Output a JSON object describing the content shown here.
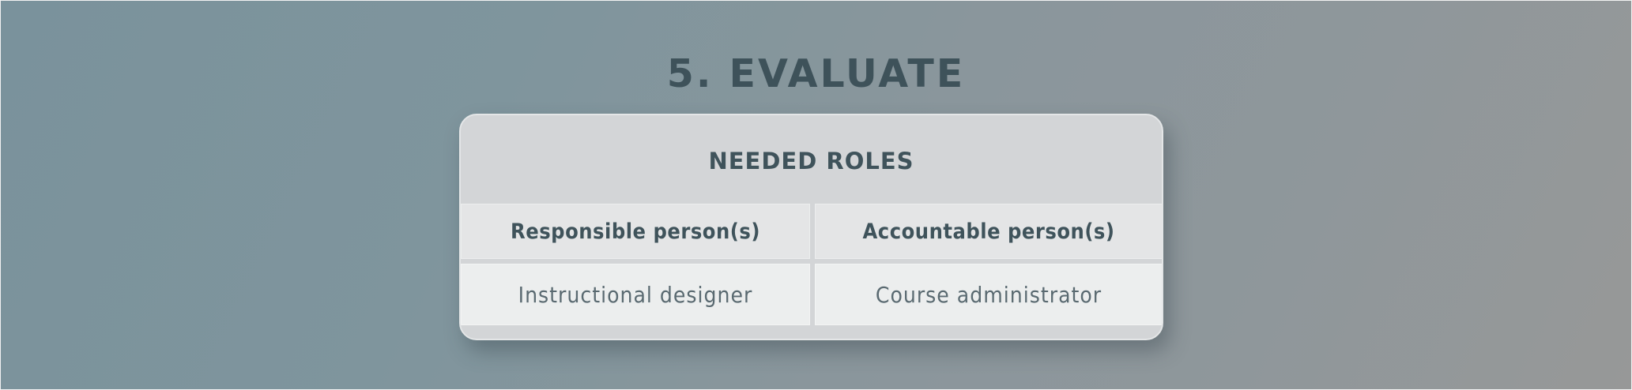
{
  "title": "5. EVALUATE",
  "card": {
    "heading": "NEEDED ROLES",
    "columns": [
      {
        "header": "Responsible person(s)",
        "value": "Instructional designer"
      },
      {
        "header": "Accountable person(s)",
        "value": "Course administrator"
      }
    ]
  },
  "colors": {
    "text_dark": "#3e525a",
    "card_bg": "#d3d5d7",
    "cell_header_bg": "#e4e5e6",
    "cell_value_bg": "#eceeee"
  }
}
